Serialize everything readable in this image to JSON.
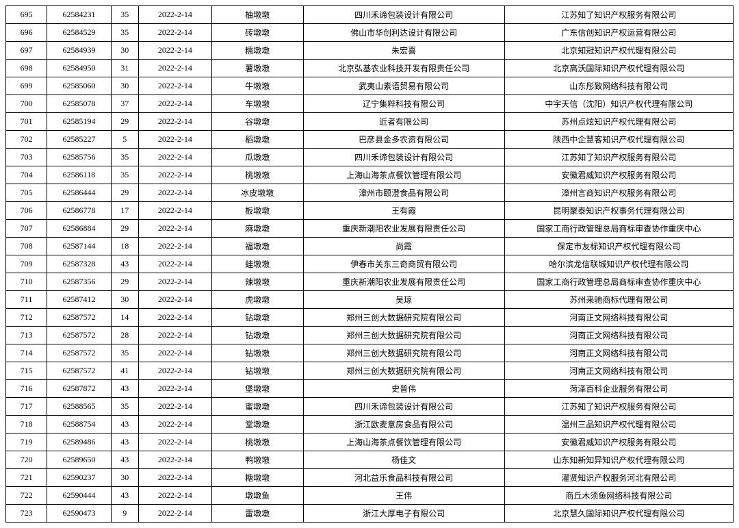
{
  "table": {
    "columns": [
      "seq",
      "id",
      "class",
      "date",
      "name",
      "applicant",
      "agency"
    ],
    "rows": [
      [
        "695",
        "62584231",
        "35",
        "2022-2-14",
        "柚墩墩",
        "四川禾谛包装设计有限公司",
        "江苏知了知识产权服务有限公司"
      ],
      [
        "696",
        "62584529",
        "35",
        "2022-2-14",
        "砖墩墩",
        "佛山市华创利达设计有限公司",
        "广东信创知识产权运营有限公司"
      ],
      [
        "697",
        "62584939",
        "30",
        "2022-2-14",
        "糯墩墩",
        "朱宏喜",
        "北京知冠知识产权代理有限公司"
      ],
      [
        "698",
        "62584950",
        "31",
        "2022-2-14",
        "薯墩墩",
        "北京弘基农业科技开发有限责任公司",
        "北京高沃国际知识产权代理有限公司"
      ],
      [
        "699",
        "62585060",
        "30",
        "2022-2-14",
        "牛墩墩",
        "武夷山素语贸易有限公司",
        "山东彤致网络科技有限公司"
      ],
      [
        "700",
        "62585078",
        "37",
        "2022-2-14",
        "车墩墩",
        "辽宁集粹科技有限公司",
        "中宇天信（沈阳）知识产权代理有限公司"
      ],
      [
        "701",
        "62585194",
        "29",
        "2022-2-14",
        "谷墩墩",
        "近者有限公司",
        "苏州点炫知识产权代理有限公司"
      ],
      [
        "702",
        "62585227",
        "5",
        "2022-2-14",
        "稻墩墩",
        "巴彦县金多农资有限公司",
        "陕西中企慧客知识产权代理有限公司"
      ],
      [
        "703",
        "62585756",
        "35",
        "2022-2-14",
        "瓜墩墩",
        "四川禾谛包装设计有限公司",
        "江苏知了知识产权服务有限公司"
      ],
      [
        "704",
        "62586118",
        "35",
        "2022-2-14",
        "桃墩墩",
        "上海山海茶点餐饮管理有限公司",
        "安徽君威知识产权服务有限公司"
      ],
      [
        "705",
        "62586444",
        "29",
        "2022-2-14",
        "冰皮墩墩",
        "漳州市颐澄食品有限公司",
        "漳州言商知识产权服务有限公司"
      ],
      [
        "706",
        "62586778",
        "17",
        "2022-2-14",
        "板墩墩",
        "王有霞",
        "昆明聚泰知识产权事务代理有限公司"
      ],
      [
        "707",
        "62586884",
        "29",
        "2022-2-14",
        "麻墩墩",
        "重庆新潮阳农业发展有限责任公司",
        "国家工商行政管理总局商标审查协作重庆中心"
      ],
      [
        "708",
        "62587144",
        "18",
        "2022-2-14",
        "福墩墩",
        "尚霞",
        "保定市友标知识产权代理有限公司"
      ],
      [
        "709",
        "62587328",
        "43",
        "2022-2-14",
        "蛙墩墩",
        "伊春市关东三奇商贸有限公司",
        "哈尔滨龙信联城知识产权代理有限公司"
      ],
      [
        "710",
        "62587356",
        "29",
        "2022-2-14",
        "辣墩墩",
        "重庆新潮阳农业发展有限责任公司",
        "国家工商行政管理总局商标审查协作重庆中心"
      ],
      [
        "711",
        "62587412",
        "30",
        "2022-2-14",
        "虎墩墩",
        "吴琼",
        "苏州来驰商标代理有限公司"
      ],
      [
        "712",
        "62587572",
        "14",
        "2022-2-14",
        "钻墩墩",
        "郑州三创大数据研究院有限公司",
        "河南正文网络科技有限公司"
      ],
      [
        "713",
        "62587572",
        "28",
        "2022-2-14",
        "钻墩墩",
        "郑州三创大数据研究院有限公司",
        "河南正文网络科技有限公司"
      ],
      [
        "714",
        "62587572",
        "35",
        "2022-2-14",
        "钻墩墩",
        "郑州三创大数据研究院有限公司",
        "河南正文网络科技有限公司"
      ],
      [
        "715",
        "62587572",
        "41",
        "2022-2-14",
        "钻墩墩",
        "郑州三创大数据研究院有限公司",
        "河南正文网络科技有限公司"
      ],
      [
        "716",
        "62587872",
        "43",
        "2022-2-14",
        "堡墩墩",
        "史普伟",
        "菏泽百科企业服务有限公司"
      ],
      [
        "717",
        "62588565",
        "35",
        "2022-2-14",
        "蜜墩墩",
        "四川禾谛包装设计有限公司",
        "江苏知了知识产权服务有限公司"
      ],
      [
        "718",
        "62588754",
        "43",
        "2022-2-14",
        "堂墩墩",
        "浙江欧麦意房食品有限公司",
        "温州三品知识产权代理有限公司"
      ],
      [
        "719",
        "62589486",
        "43",
        "2022-2-14",
        "桃墩墩",
        "上海山海茶点餐饮管理有限公司",
        "安徽君威知识产权服务有限公司"
      ],
      [
        "720",
        "62589650",
        "43",
        "2022-2-14",
        "鸭墩墩",
        "杨佳文",
        "山东知新知异知识产权代理有限公司"
      ],
      [
        "721",
        "62590237",
        "30",
        "2022-2-14",
        "糖墩墩",
        "河北益乐食品科技有限公司",
        "濯贤知识产权服务河北有限公司"
      ],
      [
        "722",
        "62590444",
        "43",
        "2022-2-14",
        "墩墩鱼",
        "王伟",
        "商丘木须鱼网络科技有限公司"
      ],
      [
        "723",
        "62590473",
        "9",
        "2022-2-14",
        "雷墩墩",
        "浙江大厚电子有限公司",
        "北京慧久国际知识产权代理有限公司"
      ]
    ]
  }
}
